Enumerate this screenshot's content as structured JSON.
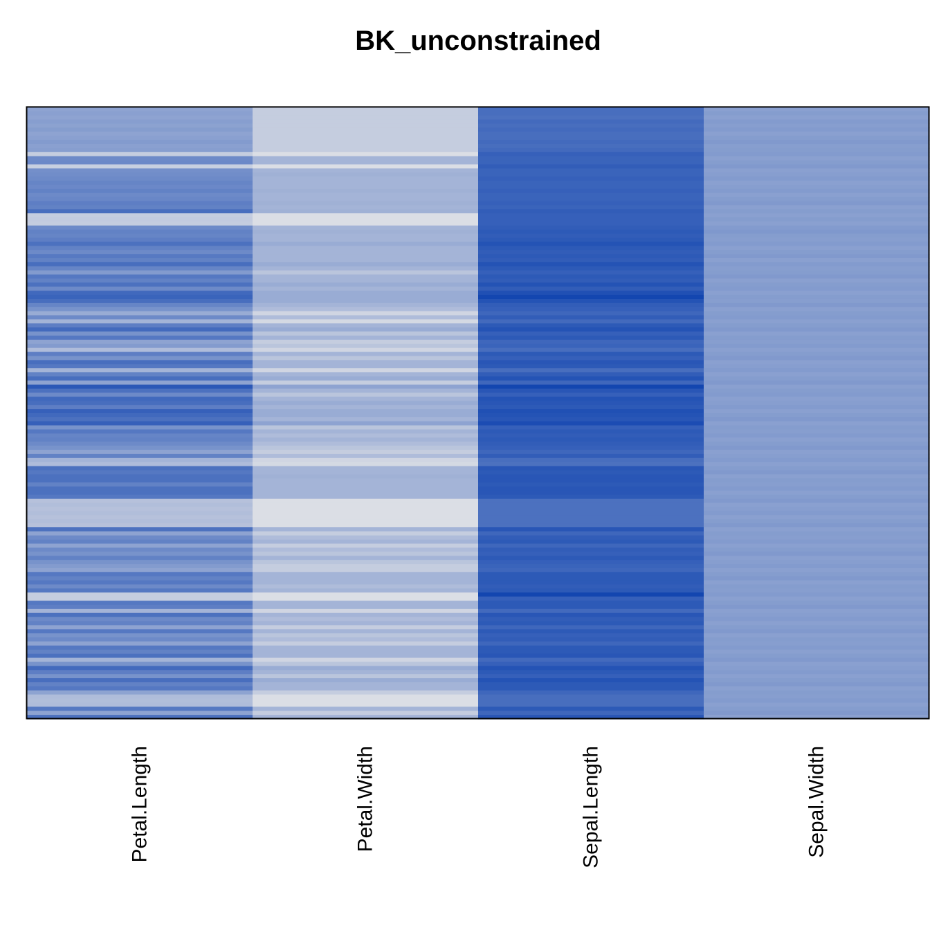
{
  "chart_data": {
    "type": "heatmap",
    "title": "BK_unconstrained",
    "xlabel": "",
    "ylabel": "",
    "columns": [
      "Petal.Length",
      "Petal.Width",
      "Sepal.Length",
      "Sepal.Width"
    ],
    "n_rows": 150,
    "value_range": [
      0,
      1
    ],
    "grid": false,
    "legend": "none",
    "colors": {
      "low": "#e6e6e8",
      "high": "#0a3fae",
      "frame": "#000000",
      "background": "#ffffff"
    },
    "values": {
      "Petal.Length": [
        0.4,
        0.42,
        0.4,
        0.43,
        0.41,
        0.44,
        0.4,
        0.42,
        0.45,
        0.42,
        0.43,
        0.15,
        0.55,
        0.56,
        0.14,
        0.52,
        0.53,
        0.55,
        0.58,
        0.56,
        0.6,
        0.55,
        0.57,
        0.62,
        0.6,
        0.72,
        0.15,
        0.16,
        0.15,
        0.55,
        0.6,
        0.58,
        0.62,
        0.7,
        0.6,
        0.55,
        0.65,
        0.6,
        0.72,
        0.58,
        0.45,
        0.66,
        0.6,
        0.7,
        0.55,
        0.75,
        0.78,
        0.72,
        0.58,
        0.5,
        0.35,
        0.55,
        0.3,
        0.62,
        0.74,
        0.5,
        0.66,
        0.4,
        0.45,
        0.25,
        0.62,
        0.5,
        0.72,
        0.66,
        0.3,
        0.6,
        0.72,
        0.4,
        0.85,
        0.7,
        0.55,
        0.75,
        0.72,
        0.62,
        0.8,
        0.75,
        0.7,
        0.8,
        0.5,
        0.66,
        0.58,
        0.6,
        0.55,
        0.5,
        0.4,
        0.6,
        0.3,
        0.25,
        0.7,
        0.66,
        0.7,
        0.7,
        0.6,
        0.7,
        0.7,
        0.66,
        0.22,
        0.24,
        0.22,
        0.24,
        0.22,
        0.24,
        0.22,
        0.7,
        0.4,
        0.55,
        0.6,
        0.4,
        0.55,
        0.5,
        0.6,
        0.5,
        0.45,
        0.4,
        0.66,
        0.6,
        0.66,
        0.55,
        0.66,
        0.15,
        0.15,
        0.66,
        0.62,
        0.3,
        0.7,
        0.55,
        0.6,
        0.4,
        0.66,
        0.5,
        0.55,
        0.4,
        0.66,
        0.6,
        0.7,
        0.3,
        0.5,
        0.74,
        0.62,
        0.5,
        0.72,
        0.6,
        0.66,
        0.4,
        0.25,
        0.24,
        0.25,
        0.66,
        0.4,
        0.7
      ],
      "Petal.Width": [
        0.15,
        0.15,
        0.15,
        0.15,
        0.15,
        0.15,
        0.15,
        0.15,
        0.15,
        0.15,
        0.15,
        0.05,
        0.3,
        0.3,
        0.05,
        0.3,
        0.32,
        0.3,
        0.3,
        0.3,
        0.32,
        0.3,
        0.3,
        0.32,
        0.3,
        0.32,
        0.05,
        0.05,
        0.05,
        0.3,
        0.32,
        0.3,
        0.3,
        0.35,
        0.3,
        0.3,
        0.3,
        0.3,
        0.35,
        0.3,
        0.2,
        0.3,
        0.3,
        0.35,
        0.3,
        0.35,
        0.35,
        0.35,
        0.3,
        0.25,
        0.1,
        0.25,
        0.08,
        0.3,
        0.35,
        0.2,
        0.3,
        0.15,
        0.2,
        0.1,
        0.3,
        0.2,
        0.3,
        0.3,
        0.1,
        0.3,
        0.35,
        0.15,
        0.4,
        0.3,
        0.2,
        0.3,
        0.35,
        0.3,
        0.35,
        0.35,
        0.3,
        0.4,
        0.2,
        0.3,
        0.25,
        0.3,
        0.25,
        0.2,
        0.15,
        0.25,
        0.1,
        0.08,
        0.3,
        0.3,
        0.32,
        0.3,
        0.3,
        0.3,
        0.3,
        0.3,
        0.05,
        0.05,
        0.05,
        0.05,
        0.05,
        0.05,
        0.05,
        0.3,
        0.15,
        0.25,
        0.3,
        0.15,
        0.25,
        0.2,
        0.3,
        0.2,
        0.15,
        0.15,
        0.3,
        0.3,
        0.3,
        0.25,
        0.3,
        0.05,
        0.05,
        0.3,
        0.3,
        0.1,
        0.3,
        0.25,
        0.3,
        0.15,
        0.3,
        0.2,
        0.25,
        0.15,
        0.3,
        0.3,
        0.3,
        0.1,
        0.2,
        0.35,
        0.3,
        0.2,
        0.35,
        0.3,
        0.3,
        0.15,
        0.05,
        0.05,
        0.05,
        0.3,
        0.15,
        0.3
      ],
      "Sepal.Length": [
        0.72,
        0.72,
        0.7,
        0.74,
        0.72,
        0.74,
        0.72,
        0.72,
        0.74,
        0.72,
        0.74,
        0.8,
        0.78,
        0.78,
        0.82,
        0.78,
        0.78,
        0.8,
        0.78,
        0.78,
        0.8,
        0.78,
        0.78,
        0.8,
        0.78,
        0.82,
        0.8,
        0.8,
        0.8,
        0.82,
        0.84,
        0.82,
        0.84,
        0.88,
        0.84,
        0.82,
        0.84,
        0.82,
        0.88,
        0.84,
        0.8,
        0.84,
        0.82,
        0.88,
        0.82,
        0.9,
        0.96,
        0.88,
        0.82,
        0.8,
        0.76,
        0.82,
        0.74,
        0.84,
        0.88,
        0.8,
        0.84,
        0.76,
        0.78,
        0.72,
        0.84,
        0.8,
        0.86,
        0.84,
        0.72,
        0.82,
        0.88,
        0.76,
        0.96,
        0.86,
        0.8,
        0.88,
        0.86,
        0.84,
        0.9,
        0.88,
        0.86,
        0.92,
        0.8,
        0.84,
        0.82,
        0.84,
        0.82,
        0.8,
        0.76,
        0.82,
        0.72,
        0.7,
        0.86,
        0.84,
        0.86,
        0.86,
        0.84,
        0.86,
        0.86,
        0.84,
        0.7,
        0.7,
        0.7,
        0.7,
        0.7,
        0.7,
        0.7,
        0.86,
        0.76,
        0.82,
        0.84,
        0.76,
        0.82,
        0.8,
        0.84,
        0.8,
        0.78,
        0.76,
        0.84,
        0.84,
        0.84,
        0.82,
        0.84,
        0.96,
        0.8,
        0.84,
        0.84,
        0.74,
        0.86,
        0.82,
        0.84,
        0.76,
        0.84,
        0.8,
        0.82,
        0.76,
        0.84,
        0.84,
        0.86,
        0.74,
        0.8,
        0.88,
        0.84,
        0.8,
        0.88,
        0.84,
        0.84,
        0.76,
        0.72,
        0.72,
        0.72,
        0.84,
        0.76,
        0.86
      ],
      "Sepal.Width": [
        0.42,
        0.44,
        0.42,
        0.45,
        0.43,
        0.45,
        0.42,
        0.44,
        0.46,
        0.43,
        0.44,
        0.45,
        0.42,
        0.44,
        0.46,
        0.42,
        0.43,
        0.45,
        0.42,
        0.43,
        0.45,
        0.42,
        0.44,
        0.46,
        0.42,
        0.44,
        0.42,
        0.44,
        0.42,
        0.45,
        0.47,
        0.44,
        0.43,
        0.45,
        0.42,
        0.44,
        0.46,
        0.42,
        0.45,
        0.43,
        0.44,
        0.46,
        0.42,
        0.44,
        0.45,
        0.42,
        0.44,
        0.43,
        0.46,
        0.42,
        0.44,
        0.45,
        0.42,
        0.44,
        0.46,
        0.42,
        0.44,
        0.43,
        0.45,
        0.42,
        0.44,
        0.46,
        0.42,
        0.43,
        0.45,
        0.42,
        0.44,
        0.46,
        0.42,
        0.44,
        0.45,
        0.42,
        0.43,
        0.45,
        0.42,
        0.44,
        0.46,
        0.42,
        0.44,
        0.43,
        0.45,
        0.42,
        0.44,
        0.46,
        0.42,
        0.43,
        0.45,
        0.42,
        0.44,
        0.46,
        0.42,
        0.44,
        0.43,
        0.45,
        0.42,
        0.44,
        0.46,
        0.42,
        0.43,
        0.45,
        0.42,
        0.44,
        0.46,
        0.42,
        0.44,
        0.43,
        0.45,
        0.42,
        0.44,
        0.46,
        0.42,
        0.43,
        0.45,
        0.42,
        0.44,
        0.46,
        0.42,
        0.44,
        0.43,
        0.45,
        0.42,
        0.44,
        0.46,
        0.42,
        0.43,
        0.45,
        0.42,
        0.44,
        0.46,
        0.42,
        0.44,
        0.43,
        0.45,
        0.42,
        0.44,
        0.46,
        0.42,
        0.43,
        0.45,
        0.42,
        0.44,
        0.46,
        0.42,
        0.44,
        0.43,
        0.45,
        0.42,
        0.44,
        0.46,
        0.42
      ]
    }
  }
}
